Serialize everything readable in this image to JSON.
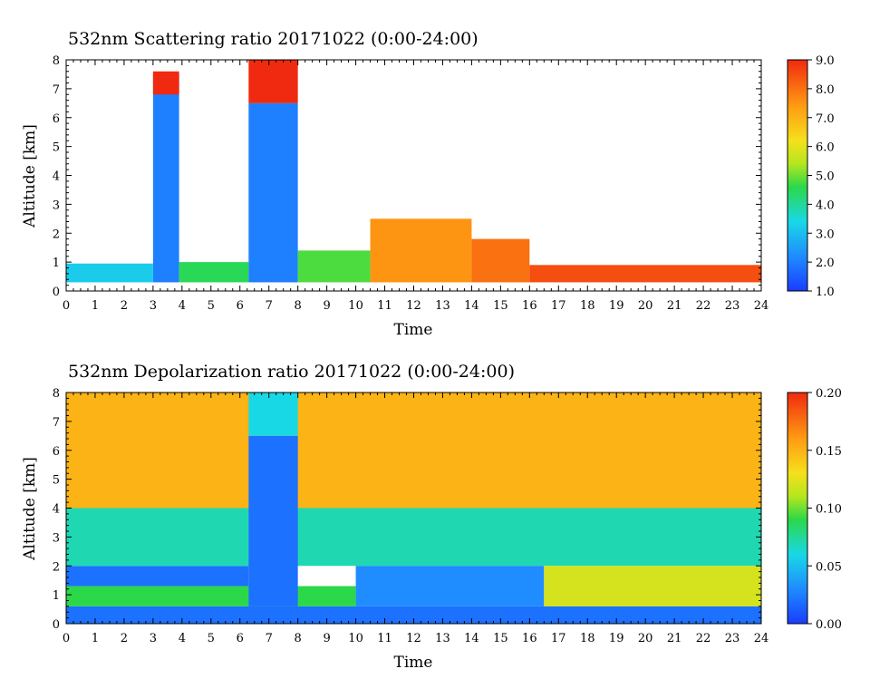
{
  "chart_data": [
    {
      "type": "heatmap",
      "title": "532nm Scattering ratio  20171022 (0:00-24:00)",
      "xlabel": "Time",
      "ylabel": "Altitude [km]",
      "xlim": [
        0,
        24
      ],
      "ylim": [
        0,
        8
      ],
      "x_ticks": [
        "0",
        "1",
        "2",
        "3",
        "4",
        "5",
        "6",
        "7",
        "8",
        "9",
        "10",
        "11",
        "12",
        "13",
        "14",
        "15",
        "16",
        "17",
        "18",
        "19",
        "20",
        "21",
        "22",
        "23",
        "24"
      ],
      "y_ticks": [
        "0",
        "1",
        "2",
        "3",
        "4",
        "5",
        "6",
        "7",
        "8"
      ],
      "colorbar": {
        "range": [
          1.0,
          9.0
        ],
        "ticks": [
          "1.0",
          "2.0",
          "3.0",
          "4.0",
          "5.0",
          "6.0",
          "7.0",
          "8.0",
          "9.0"
        ]
      },
      "grid": false,
      "regions": [
        {
          "t0": 0.0,
          "t1": 3.0,
          "z0": 0.3,
          "z1": 0.95,
          "value": 3.2
        },
        {
          "t0": 3.0,
          "t1": 3.9,
          "z0": 0.3,
          "z1": 7.5,
          "value": 2.0
        },
        {
          "t0": 3.0,
          "t1": 3.9,
          "z0": 6.8,
          "z1": 7.6,
          "value": 9.0
        },
        {
          "t0": 3.9,
          "t1": 6.3,
          "z0": 0.3,
          "z1": 1.0,
          "value": 4.5
        },
        {
          "t0": 6.3,
          "t1": 8.0,
          "z0": 0.3,
          "z1": 6.5,
          "value": 2.0
        },
        {
          "t0": 6.3,
          "t1": 8.0,
          "z0": 6.5,
          "z1": 8.0,
          "value": 9.0
        },
        {
          "t0": 8.0,
          "t1": 10.5,
          "z0": 0.3,
          "z1": 1.4,
          "value": 4.8
        },
        {
          "t0": 10.5,
          "t1": 14.0,
          "z0": 0.3,
          "z1": 2.5,
          "value": 7.5
        },
        {
          "t0": 14.0,
          "t1": 16.0,
          "z0": 0.3,
          "z1": 1.8,
          "value": 8.0
        },
        {
          "t0": 16.0,
          "t1": 24.0,
          "z0": 0.3,
          "z1": 0.9,
          "value": 8.5
        }
      ]
    },
    {
      "type": "heatmap",
      "title": "532nm Depolarization ratio  20171022 (0:00-24:00)",
      "xlabel": "Time",
      "ylabel": "Altitude [km]",
      "xlim": [
        0,
        24
      ],
      "ylim": [
        0,
        8
      ],
      "x_ticks": [
        "0",
        "1",
        "2",
        "3",
        "4",
        "5",
        "6",
        "7",
        "8",
        "9",
        "10",
        "11",
        "12",
        "13",
        "14",
        "15",
        "16",
        "17",
        "18",
        "19",
        "20",
        "21",
        "22",
        "23",
        "24"
      ],
      "y_ticks": [
        "0",
        "1",
        "2",
        "3",
        "4",
        "5",
        "6",
        "7",
        "8"
      ],
      "colorbar": {
        "range": [
          0.0,
          0.2
        ],
        "ticks": [
          "0.00",
          "0.05",
          "0.10",
          "0.15",
          "0.20"
        ]
      },
      "grid": false,
      "regions": [
        {
          "t0": 0.0,
          "t1": 24.0,
          "z0": 0.0,
          "z1": 0.6,
          "value": 0.02
        },
        {
          "t0": 0.0,
          "t1": 10.0,
          "z0": 0.6,
          "z1": 1.3,
          "value": 0.09
        },
        {
          "t0": 0.0,
          "t1": 6.3,
          "z0": 1.3,
          "z1": 2.0,
          "value": 0.02
        },
        {
          "t0": 0.0,
          "t1": 24.0,
          "z0": 2.0,
          "z1": 4.0,
          "value": 0.07
        },
        {
          "t0": 0.0,
          "t1": 24.0,
          "z0": 4.0,
          "z1": 8.0,
          "value": 0.15
        },
        {
          "t0": 6.3,
          "t1": 8.0,
          "z0": 0.6,
          "z1": 6.5,
          "value": 0.02
        },
        {
          "t0": 6.3,
          "t1": 8.0,
          "z0": 6.5,
          "z1": 8.0,
          "value": 0.06
        },
        {
          "t0": 10.0,
          "t1": 16.5,
          "z0": 0.6,
          "z1": 2.0,
          "value": 0.03
        },
        {
          "t0": 16.5,
          "t1": 24.0,
          "z0": 0.6,
          "z1": 2.0,
          "value": 0.12
        }
      ]
    }
  ]
}
